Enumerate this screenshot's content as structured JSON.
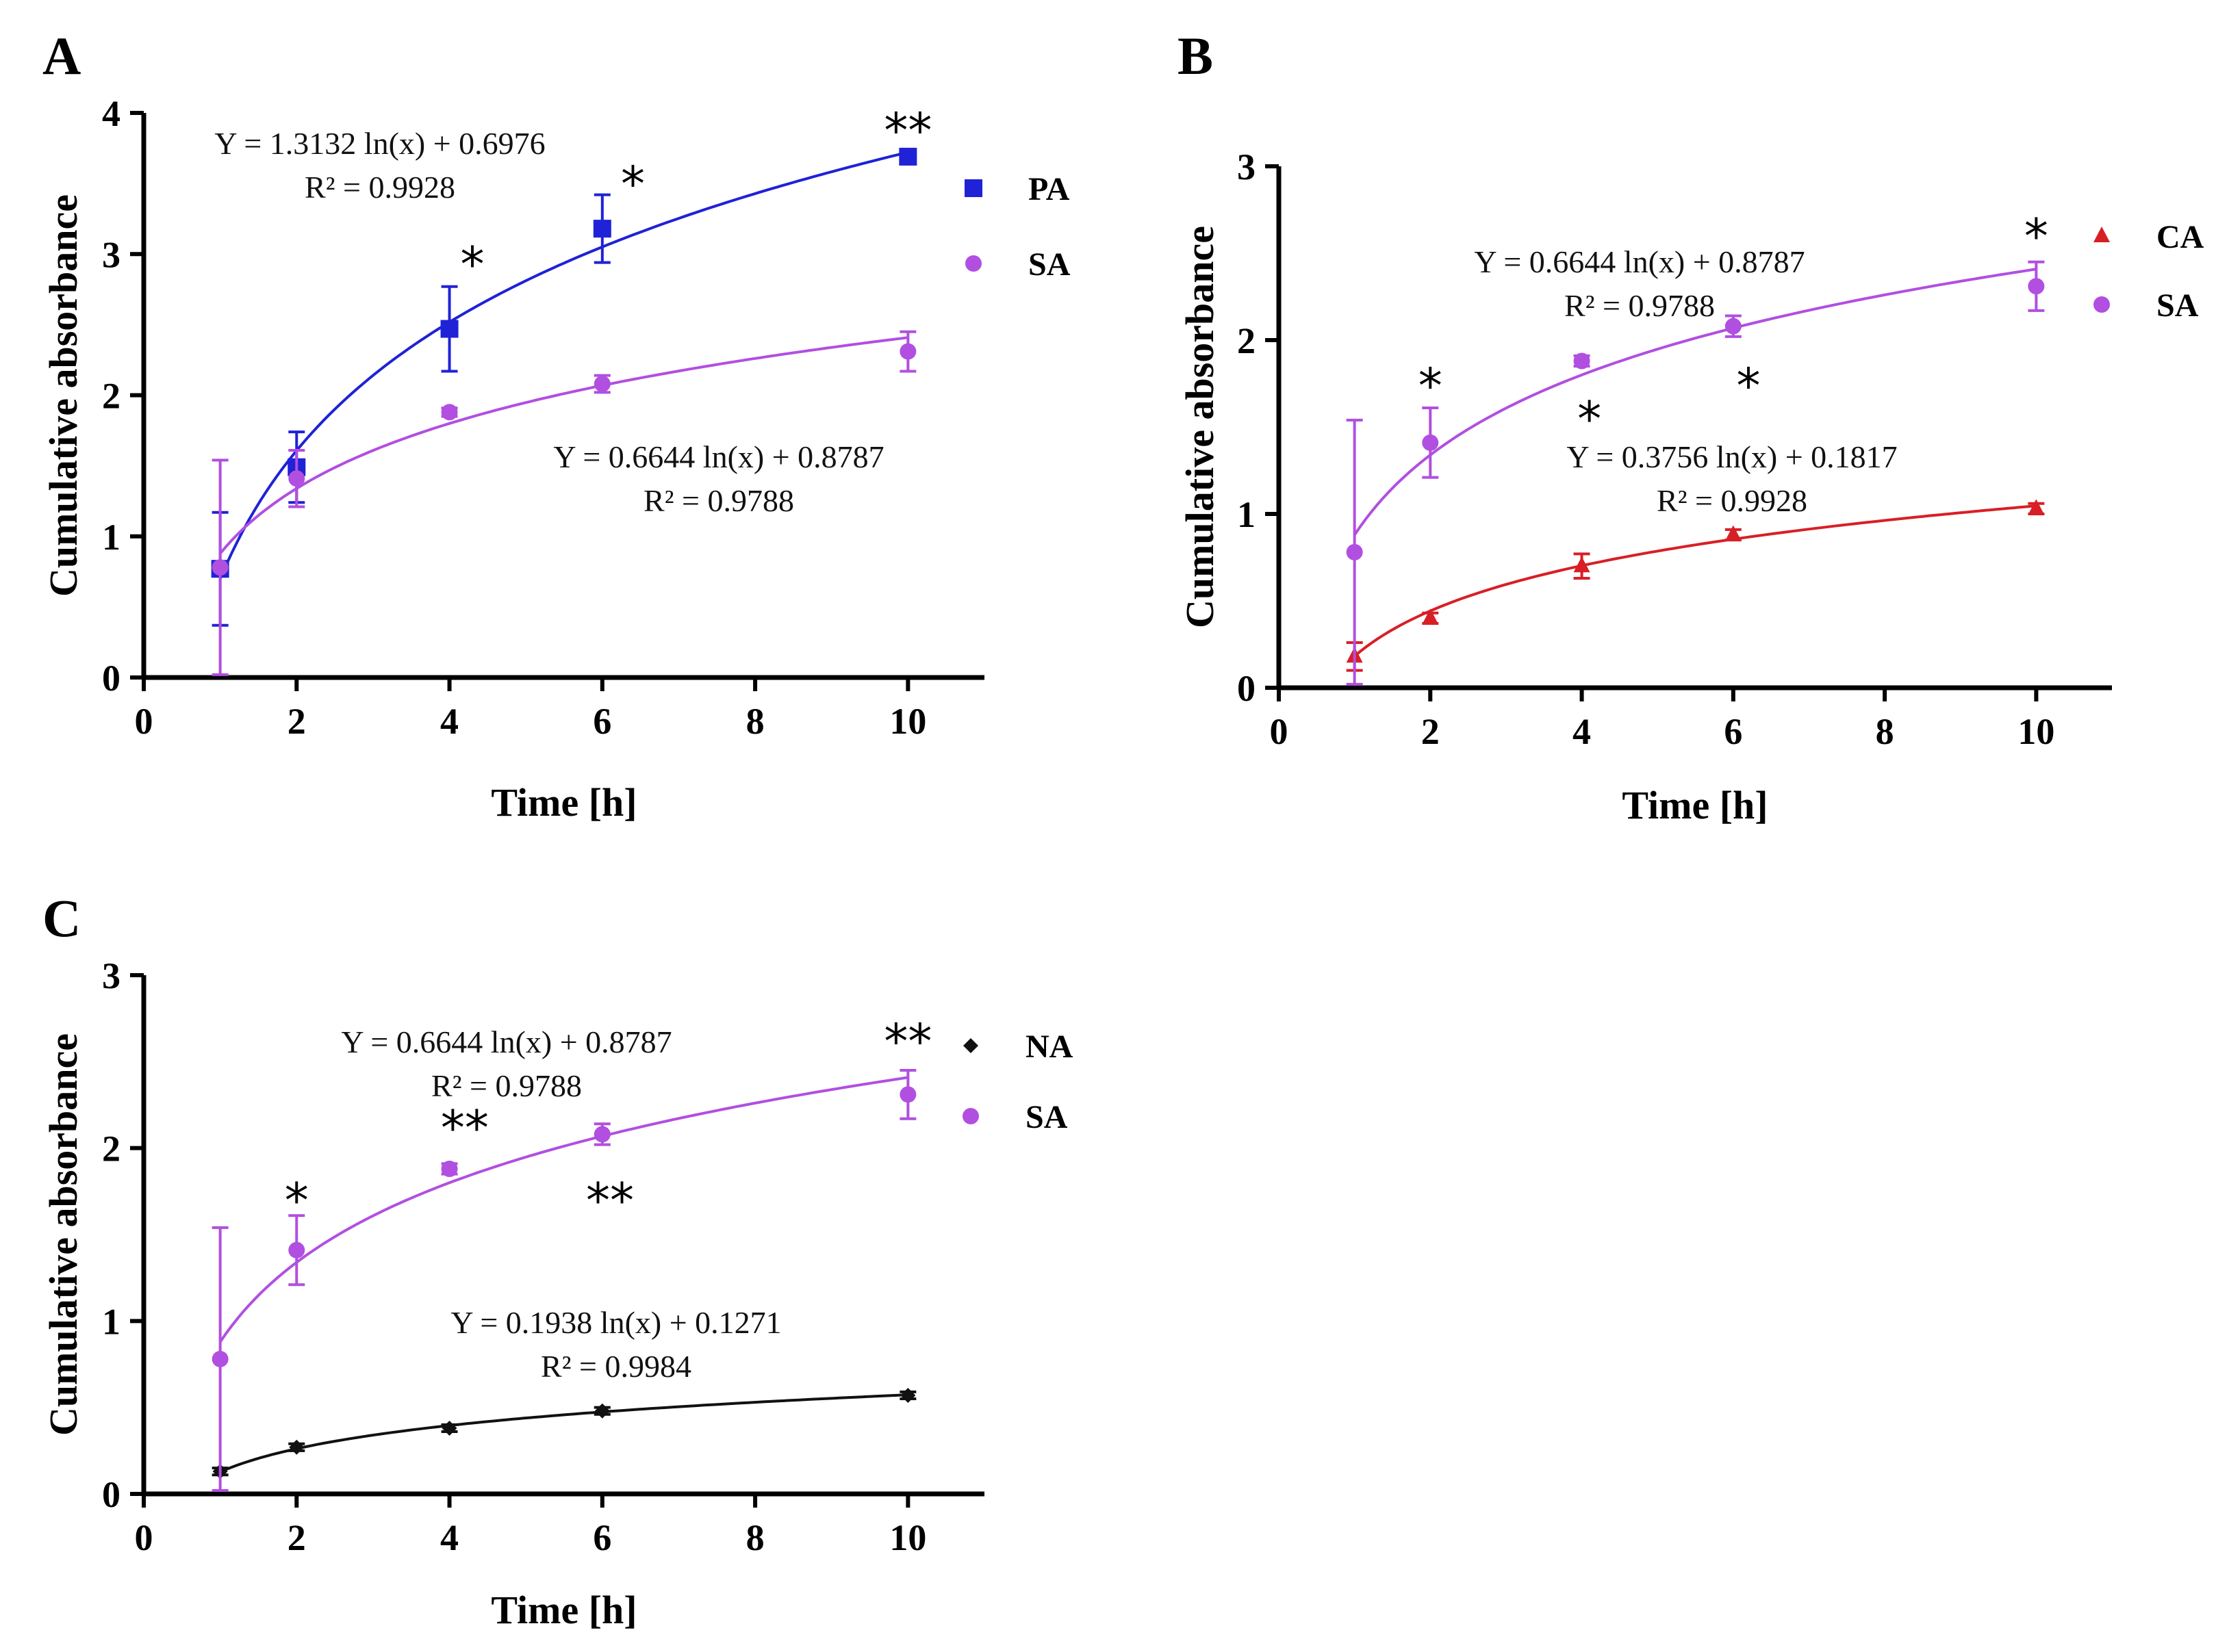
{
  "colors": {
    "PA": "#1f22d6",
    "SA": "#b14fe0",
    "CA": "#d81f26",
    "NA": "#111111"
  },
  "chart_data": [
    {
      "id": "A",
      "type": "scatter",
      "panel_label": "A",
      "xlabel": "Time [h]",
      "ylabel": "Cumulative absorbance",
      "xlim": [
        0,
        11
      ],
      "ylim": [
        0,
        4
      ],
      "xticks": [
        0,
        2,
        4,
        6,
        8,
        10
      ],
      "yticks": [
        0,
        1,
        2,
        3,
        4
      ],
      "legend_position": "right",
      "series": [
        {
          "key": "PA",
          "name": "PA",
          "marker": "square",
          "x": [
            1,
            2,
            4,
            6,
            10
          ],
          "y": [
            0.77,
            1.49,
            2.47,
            3.18,
            3.69
          ],
          "err": [
            0.4,
            0.25,
            0.3,
            0.24,
            0.03
          ],
          "fit": {
            "a": 1.3132,
            "b": 0.6976
          },
          "equation": "Y = 1.3132 ln(x) + 0.6976",
          "r2": "R² = 0.9928"
        },
        {
          "key": "SA",
          "name": "SA",
          "marker": "circle",
          "x": [
            1,
            2,
            4,
            6,
            10
          ],
          "y": [
            0.78,
            1.41,
            1.88,
            2.08,
            2.31
          ],
          "err": [
            0.76,
            0.2,
            0.03,
            0.06,
            0.14
          ],
          "fit": {
            "a": 0.6644,
            "b": 0.8787
          },
          "equation": "Y = 0.6644 ln(x) + 0.8787",
          "r2": "R² = 0.9788"
        }
      ],
      "significance": [
        {
          "x": 4.3,
          "y": 2.93,
          "text": "*"
        },
        {
          "x": 6.4,
          "y": 3.5,
          "text": "*"
        },
        {
          "x": 10.0,
          "y": 3.88,
          "text": "**"
        }
      ]
    },
    {
      "id": "B",
      "type": "scatter",
      "panel_label": "B",
      "xlabel": "Time [h]",
      "ylabel": "Cumulative absorbance",
      "xlim": [
        0,
        11
      ],
      "ylim": [
        0,
        3
      ],
      "xticks": [
        0,
        2,
        4,
        6,
        8,
        10
      ],
      "yticks": [
        0,
        1,
        2,
        3
      ],
      "legend_position": "right",
      "series": [
        {
          "key": "CA",
          "name": "CA",
          "marker": "triangle",
          "x": [
            1,
            2,
            4,
            6,
            10
          ],
          "y": [
            0.18,
            0.4,
            0.7,
            0.88,
            1.03
          ],
          "err": [
            0.08,
            0.03,
            0.07,
            0.03,
            0.03
          ],
          "fit": {
            "a": 0.3756,
            "b": 0.1817
          },
          "equation": "Y = 0.3756 ln(x) + 0.1817",
          "r2": "R² = 0.9928"
        },
        {
          "key": "SA",
          "name": "SA",
          "marker": "circle",
          "x": [
            1,
            2,
            4,
            6,
            10
          ],
          "y": [
            0.78,
            1.41,
            1.88,
            2.08,
            2.31
          ],
          "err": [
            0.76,
            0.2,
            0.03,
            0.06,
            0.14
          ],
          "fit": {
            "a": 0.6644,
            "b": 0.8787
          },
          "equation": "Y = 0.6644 ln(x) + 0.8787",
          "r2": "R² = 0.9788"
        }
      ],
      "significance": [
        {
          "x": 2.0,
          "y": 1.74,
          "text": "*"
        },
        {
          "x": 4.1,
          "y": 1.55,
          "text": "*"
        },
        {
          "x": 6.2,
          "y": 1.74,
          "text": "*"
        },
        {
          "x": 10.0,
          "y": 2.6,
          "text": "*"
        }
      ]
    },
    {
      "id": "C",
      "type": "scatter",
      "panel_label": "C",
      "xlabel": "Time [h]",
      "ylabel": "Cumulative absorbance",
      "xlim": [
        0,
        11
      ],
      "ylim": [
        0,
        3
      ],
      "xticks": [
        0,
        2,
        4,
        6,
        8,
        10
      ],
      "yticks": [
        0,
        1,
        2,
        3
      ],
      "legend_position": "right",
      "series": [
        {
          "key": "NA",
          "name": "NA",
          "marker": "diamond",
          "x": [
            1,
            2,
            4,
            6,
            10
          ],
          "y": [
            0.13,
            0.27,
            0.38,
            0.48,
            0.57
          ],
          "err": [
            0.02,
            0.02,
            0.02,
            0.02,
            0.02
          ],
          "fit": {
            "a": 0.1938,
            "b": 0.1271
          },
          "equation": "Y = 0.1938 ln(x) + 0.1271",
          "r2": "R² = 0.9984"
        },
        {
          "key": "SA",
          "name": "SA",
          "marker": "circle",
          "x": [
            1,
            2,
            4,
            6,
            10
          ],
          "y": [
            0.78,
            1.41,
            1.88,
            2.08,
            2.31
          ],
          "err": [
            0.76,
            0.2,
            0.03,
            0.06,
            0.14
          ],
          "fit": {
            "a": 0.6644,
            "b": 0.8787
          },
          "equation": "Y = 0.6644 ln(x) + 0.8787",
          "r2": "R² = 0.9788"
        }
      ],
      "significance": [
        {
          "x": 2.0,
          "y": 1.7,
          "text": "*"
        },
        {
          "x": 4.2,
          "y": 2.12,
          "text": "**"
        },
        {
          "x": 6.1,
          "y": 1.7,
          "text": "**"
        },
        {
          "x": 10.0,
          "y": 2.62,
          "text": "**"
        }
      ]
    }
  ]
}
